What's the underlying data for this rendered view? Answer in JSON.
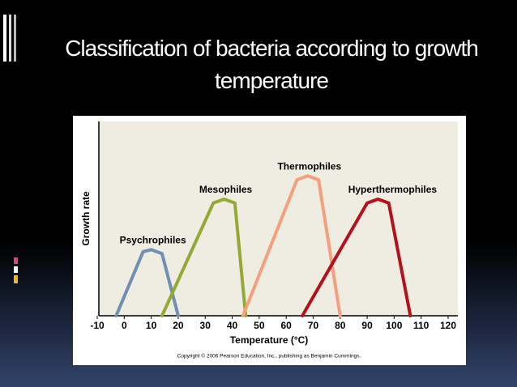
{
  "title": "Classification of bacteria according to growth temperature",
  "chart_data": {
    "type": "line",
    "xlabel": "Temperature (°C)",
    "ylabel": "Growth rate",
    "note": "Copyright © 2006 Pearson Education, Inc., publishing as Benjamin Cummings.",
    "xlim": [
      -10,
      120
    ],
    "xticks": [
      -10,
      0,
      10,
      20,
      30,
      40,
      50,
      60,
      70,
      80,
      90,
      100,
      110,
      120
    ],
    "ylim": [
      0,
      100
    ],
    "series": [
      {
        "name": "Psychrophiles",
        "color": "#6f8fb3",
        "x": [
          -3,
          7,
          10,
          14,
          20
        ],
        "values": [
          0,
          33,
          34,
          32,
          0
        ]
      },
      {
        "name": "Mesophiles",
        "color": "#93a935",
        "x": [
          14,
          33,
          37,
          41,
          45
        ],
        "values": [
          0,
          58,
          60,
          58,
          0
        ]
      },
      {
        "name": "Thermophiles",
        "color": "#f4a07e",
        "x": [
          44,
          64,
          68,
          72,
          80
        ],
        "values": [
          0,
          70,
          72,
          70,
          0
        ]
      },
      {
        "name": "Hyperthermophiles",
        "color": "#b3121c",
        "x": [
          66,
          90,
          94,
          98,
          106
        ],
        "values": [
          0,
          58,
          60,
          58,
          0
        ]
      }
    ]
  }
}
